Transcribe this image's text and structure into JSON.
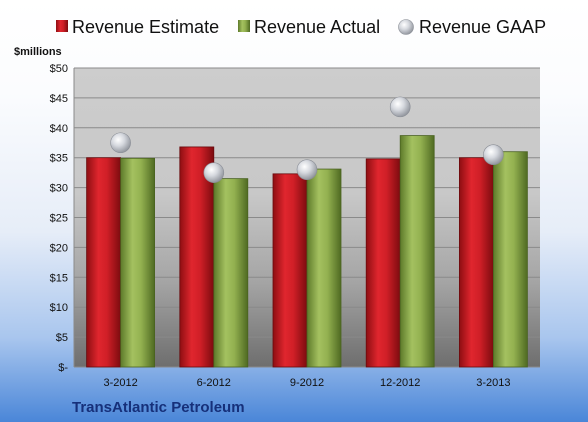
{
  "chart_data": {
    "type": "bar",
    "categories": [
      "3-2012",
      "6-2012",
      "9-2012",
      "12-2012",
      "3-2013"
    ],
    "series": [
      {
        "name": "Revenue Estimate",
        "kind": "bar",
        "values": [
          35.0,
          36.8,
          32.3,
          34.8,
          35.0
        ],
        "color": "#cc1f26"
      },
      {
        "name": "Revenue Actual",
        "kind": "bar",
        "values": [
          34.9,
          31.5,
          33.1,
          38.7,
          36.0
        ],
        "color": "#8fad4d"
      },
      {
        "name": "Revenue GAAP",
        "kind": "marker",
        "values": [
          37.5,
          32.5,
          33.0,
          43.5,
          35.5
        ],
        "color": "#c9ccd2"
      }
    ],
    "ylabel": "$millions",
    "ylim": [
      0,
      50
    ],
    "yticks": [
      0,
      5,
      10,
      15,
      20,
      25,
      30,
      35,
      40,
      45,
      50
    ],
    "ytick_labels": [
      "$-",
      "$5",
      "$10",
      "$15",
      "$20",
      "$25",
      "$30",
      "$35",
      "$40",
      "$45",
      "$50"
    ],
    "grid": true,
    "legend_position": "top"
  },
  "company": "TransAtlantic Petroleum"
}
